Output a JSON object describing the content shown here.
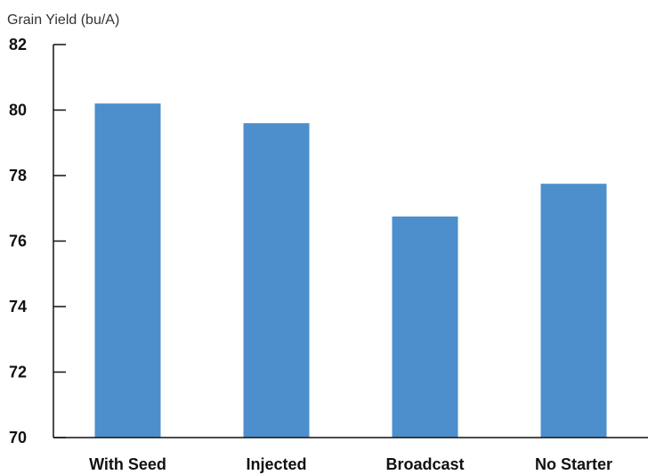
{
  "chart_data": {
    "type": "bar",
    "title": "",
    "ylabel": "Grain Yield (bu/A)",
    "xlabel": "",
    "categories": [
      "With Seed",
      "Injected",
      "Broadcast",
      "No Starter"
    ],
    "values": [
      80.2,
      79.6,
      76.75,
      77.75
    ],
    "ylim": [
      70,
      82
    ],
    "yticks": [
      "70",
      "72",
      "74",
      "76",
      "78",
      "80",
      "82"
    ],
    "grid": false,
    "legend": "none",
    "colors": {
      "bar": "#4d8fcc",
      "axis": "#111111"
    }
  }
}
